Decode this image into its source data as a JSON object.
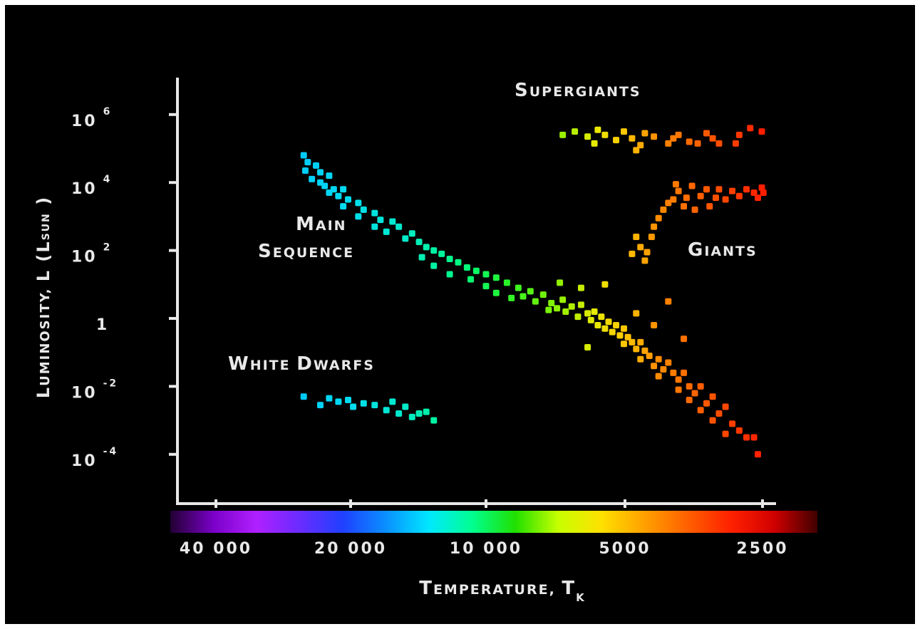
{
  "chart_data": {
    "type": "scatter",
    "title": "",
    "xlabel": {
      "cap": "T",
      "small": "EMPERATURE, ",
      "var": "T",
      "sub": "K"
    },
    "ylabel": {
      "cap": "L",
      "small": "UMINOSITY, ",
      "var": "L (L",
      "sub": "SUN",
      "close": " )"
    },
    "x_axis": {
      "scale": "reversed-log temperature",
      "ticks": [
        "40 000",
        "20 000",
        "10 000",
        "5000",
        "2500"
      ]
    },
    "y_axis": {
      "scale": "log",
      "ticks": [
        {
          "base": "10",
          "exp": "6"
        },
        {
          "base": "10",
          "exp": "4"
        },
        {
          "base": "10",
          "exp": "2"
        },
        {
          "base": "1",
          "exp": ""
        },
        {
          "base": "10",
          "exp": "-2"
        },
        {
          "base": "10",
          "exp": "-4"
        }
      ]
    },
    "colorbar": {
      "stops": [
        "#220033",
        "#7a00c8",
        "#b020ff",
        "#6a2cff",
        "#2040ff",
        "#0a90ff",
        "#00e8ff",
        "#00ff90",
        "#20e000",
        "#c8ff00",
        "#ffe000",
        "#ffa000",
        "#ff6000",
        "#ff2000",
        "#d00000",
        "#400000"
      ]
    },
    "annotations": [
      {
        "id": "supergiants",
        "lines": [
          {
            "cap": "S",
            "small": "UPERGIANTS"
          }
        ]
      },
      {
        "id": "giants",
        "lines": [
          {
            "cap": "G",
            "small": "IANTS"
          }
        ]
      },
      {
        "id": "main-sequence",
        "lines": [
          {
            "cap": "M",
            "small": "AIN"
          },
          {
            "cap": "S",
            "small": "EQUENCE"
          }
        ]
      },
      {
        "id": "white-dwarfs",
        "lines": [
          {
            "cap": "W",
            "small": "HITE ",
            "cap2": "D",
            "small2": "WARFS"
          }
        ]
      }
    ],
    "groups": [
      {
        "name": "",
        "id": "main-sequence",
        "points": [
          [
            25000,
            4.8
          ],
          [
            24500,
            4.6
          ],
          [
            23500,
            4.5
          ],
          [
            24800,
            4.35
          ],
          [
            23000,
            4.3
          ],
          [
            22000,
            4.2
          ],
          [
            24000,
            4.1
          ],
          [
            23000,
            4.0
          ],
          [
            22500,
            3.9
          ],
          [
            21500,
            3.8
          ],
          [
            20500,
            3.8
          ],
          [
            22000,
            3.7
          ],
          [
            21000,
            3.6
          ],
          [
            20000,
            3.5
          ],
          [
            19000,
            3.4
          ],
          [
            20500,
            3.3
          ],
          [
            18500,
            3.2
          ],
          [
            17500,
            3.1
          ],
          [
            19000,
            3.0
          ],
          [
            17000,
            2.9
          ],
          [
            16000,
            2.85
          ],
          [
            17500,
            2.7
          ],
          [
            15500,
            2.7
          ],
          [
            16500,
            2.55
          ],
          [
            14500,
            2.5
          ],
          [
            15000,
            2.35
          ],
          [
            14000,
            2.25
          ],
          [
            13500,
            2.1
          ],
          [
            13000,
            2.0
          ],
          [
            12500,
            1.9
          ],
          [
            13800,
            1.8
          ],
          [
            12000,
            1.75
          ],
          [
            11500,
            1.65
          ],
          [
            13000,
            1.55
          ],
          [
            11000,
            1.5
          ],
          [
            10500,
            1.4
          ],
          [
            12000,
            1.3
          ],
          [
            10000,
            1.3
          ],
          [
            10800,
            1.15
          ],
          [
            9500,
            1.2
          ],
          [
            9000,
            1.05
          ],
          [
            10000,
            0.95
          ],
          [
            8500,
            0.9
          ],
          [
            9500,
            0.75
          ],
          [
            8000,
            0.8
          ],
          [
            8800,
            0.6
          ],
          [
            7500,
            0.7
          ],
          [
            7800,
            0.5
          ],
          [
            7200,
            0.45
          ],
          [
            6800,
            0.55
          ],
          [
            7000,
            0.3
          ],
          [
            6500,
            0.35
          ],
          [
            6700,
            0.2
          ],
          [
            6200,
            0.4
          ],
          [
            6000,
            0.15
          ],
          [
            6300,
            0.05
          ],
          [
            5800,
            0.2
          ],
          [
            5900,
            -0.05
          ],
          [
            5600,
            0.05
          ],
          [
            5700,
            -0.2
          ],
          [
            5400,
            -0.1
          ],
          [
            5500,
            -0.3
          ],
          [
            5200,
            -0.2
          ],
          [
            5300,
            -0.4
          ],
          [
            5000,
            -0.3
          ],
          [
            5100,
            -0.5
          ],
          [
            4900,
            -0.55
          ],
          [
            4800,
            -0.7
          ],
          [
            5000,
            -0.75
          ],
          [
            4600,
            -0.7
          ],
          [
            4700,
            -0.9
          ],
          [
            4500,
            -0.95
          ],
          [
            4400,
            -1.1
          ],
          [
            4600,
            -1.2
          ],
          [
            4200,
            -1.2
          ],
          [
            4300,
            -1.4
          ],
          [
            4100,
            -1.5
          ],
          [
            4000,
            -1.3
          ],
          [
            3900,
            -1.6
          ],
          [
            4200,
            -1.7
          ],
          [
            3800,
            -1.8
          ],
          [
            3700,
            -1.6
          ],
          [
            3600,
            -2.0
          ],
          [
            3800,
            -2.1
          ],
          [
            3500,
            -2.2
          ],
          [
            3400,
            -2.0
          ],
          [
            3600,
            -2.4
          ],
          [
            3300,
            -2.5
          ],
          [
            3200,
            -2.3
          ],
          [
            3400,
            -2.7
          ],
          [
            3100,
            -2.8
          ],
          [
            3000,
            -2.6
          ],
          [
            3200,
            -3.0
          ],
          [
            2900,
            -3.1
          ],
          [
            2800,
            -3.3
          ],
          [
            3000,
            -3.4
          ],
          [
            2700,
            -3.5
          ],
          [
            2600,
            -3.5
          ],
          [
            2550,
            -4.0
          ],
          [
            8300,
            0.65
          ],
          [
            6900,
            1.05
          ],
          [
            6200,
            0.9
          ],
          [
            5500,
            1.0
          ],
          [
            4300,
            -0.2
          ],
          [
            4000,
            0.5
          ],
          [
            3700,
            -0.6
          ],
          [
            7300,
            0.25
          ],
          [
            6000,
            -0.85
          ],
          [
            4700,
            0.15
          ]
        ]
      },
      {
        "name": "",
        "id": "supergiants",
        "points": [
          [
            6800,
            5.4
          ],
          [
            6400,
            5.5
          ],
          [
            6000,
            5.35
          ],
          [
            5700,
            5.55
          ],
          [
            5500,
            5.4
          ],
          [
            5200,
            5.25
          ],
          [
            5000,
            5.5
          ],
          [
            4800,
            5.3
          ],
          [
            4600,
            5.1
          ],
          [
            4500,
            5.45
          ],
          [
            4300,
            5.35
          ],
          [
            4000,
            5.15
          ],
          [
            3800,
            5.4
          ],
          [
            3600,
            5.2
          ],
          [
            3450,
            5.15
          ],
          [
            3300,
            5.45
          ],
          [
            3200,
            5.3
          ],
          [
            3100,
            5.15
          ],
          [
            2850,
            5.15
          ],
          [
            2800,
            5.4
          ],
          [
            2650,
            5.6
          ],
          [
            2500,
            5.5
          ],
          [
            5800,
            5.15
          ],
          [
            4700,
            4.95
          ],
          [
            3900,
            5.3
          ]
        ]
      },
      {
        "name": "",
        "id": "giants",
        "points": [
          [
            4700,
            2.4
          ],
          [
            4600,
            2.1
          ],
          [
            4800,
            1.9
          ],
          [
            4500,
            1.7
          ],
          [
            4450,
            1.95
          ],
          [
            4350,
            2.4
          ],
          [
            4300,
            2.7
          ],
          [
            4200,
            2.95
          ],
          [
            4100,
            3.2
          ],
          [
            4000,
            3.4
          ],
          [
            3900,
            3.5
          ],
          [
            3800,
            3.75
          ],
          [
            3700,
            3.3
          ],
          [
            3650,
            3.55
          ],
          [
            3550,
            3.9
          ],
          [
            3500,
            3.2
          ],
          [
            3400,
            3.6
          ],
          [
            3300,
            3.8
          ],
          [
            3250,
            3.3
          ],
          [
            3150,
            3.55
          ],
          [
            3100,
            3.8
          ],
          [
            3000,
            3.5
          ],
          [
            2900,
            3.75
          ],
          [
            2800,
            3.6
          ],
          [
            2700,
            3.8
          ],
          [
            2600,
            3.7
          ],
          [
            2550,
            3.55
          ],
          [
            2500,
            3.85
          ],
          [
            2480,
            3.7
          ],
          [
            3850,
            3.95
          ]
        ]
      },
      {
        "name": "",
        "id": "white-dwarfs",
        "points": [
          [
            25000,
            -2.3
          ],
          [
            23000,
            -2.55
          ],
          [
            22000,
            -2.35
          ],
          [
            21000,
            -2.45
          ],
          [
            20000,
            -2.4
          ],
          [
            19500,
            -2.6
          ],
          [
            18500,
            -2.5
          ],
          [
            17500,
            -2.55
          ],
          [
            16500,
            -2.7
          ],
          [
            16000,
            -2.45
          ],
          [
            15500,
            -2.8
          ],
          [
            15000,
            -2.6
          ],
          [
            14500,
            -2.9
          ],
          [
            14000,
            -2.8
          ],
          [
            13500,
            -2.75
          ],
          [
            13000,
            -3.0
          ]
        ]
      }
    ]
  }
}
